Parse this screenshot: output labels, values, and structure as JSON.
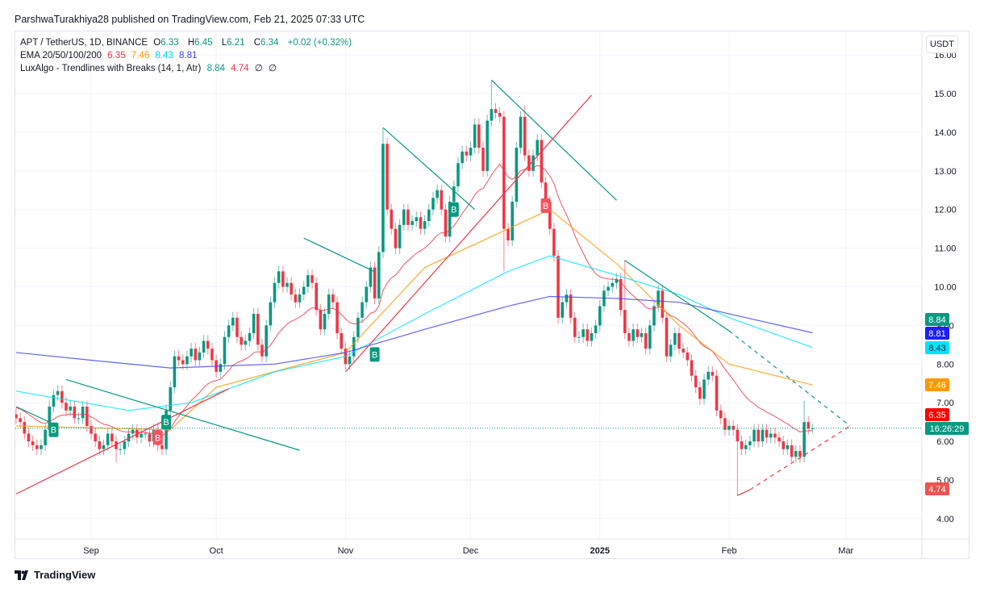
{
  "published": "ParshwaTurakhiya28 published on TradingView.com, Feb 21, 2025 07:33 UTC",
  "legend": {
    "symbol": "APT / TetherUS, 1D, BINANCE",
    "o_label": "O",
    "o": "6.33",
    "h_label": "H",
    "h": "6.45",
    "l_label": "L",
    "l": "6.21",
    "c_label": "C",
    "c": "6.34",
    "change": "+0.02 (+0.32%)",
    "ema_label": "EMA 20/50/100/200",
    "ema_values": [
      "6.35",
      "7.46",
      "8.43",
      "8.81"
    ],
    "lux_label": "LuxAlgo - Trendlines with Breaks (14, 1, Atr)",
    "lux_values": [
      "8.84",
      "4.74",
      "∅",
      "∅"
    ]
  },
  "currency_button": "USDT",
  "logo_text": "TradingView",
  "colors": {
    "up": "#089981",
    "down": "#f23645",
    "ema20": "#f23645",
    "ema50": "#ff9800",
    "ema100": "#00e5ff",
    "ema200": "#3d3dff",
    "trend_down": "#089981",
    "trend_up": "#f23645"
  },
  "chart_data": {
    "type": "candlestick",
    "first_date": "2024-08-14",
    "closes": [
      6.6,
      6.5,
      6.2,
      6.0,
      5.9,
      5.8,
      5.9,
      6.3,
      6.9,
      7.2,
      7.3,
      7.0,
      6.8,
      6.9,
      6.6,
      6.6,
      6.9,
      6.4,
      6.2,
      6.0,
      5.8,
      5.9,
      6.2,
      6.0,
      5.8,
      5.8,
      6.0,
      6.2,
      6.3,
      6.1,
      6.2,
      6.2,
      6.0,
      6.3,
      5.9,
      5.8,
      6.8,
      7.4,
      8.2,
      8.1,
      8.0,
      8.2,
      8.4,
      8.1,
      8.3,
      8.6,
      8.4,
      8.1,
      7.8,
      8.0,
      8.7,
      9.0,
      9.2,
      8.7,
      8.5,
      8.6,
      8.8,
      9.3,
      8.5,
      8.2,
      9.0,
      9.6,
      10.1,
      10.4,
      10.0,
      10.1,
      9.8,
      9.6,
      9.8,
      10.0,
      10.3,
      10.1,
      9.4,
      8.9,
      9.3,
      9.8,
      9.6,
      8.8,
      8.4,
      8.0,
      8.2,
      8.7,
      9.2,
      9.6,
      10.0,
      10.5,
      9.7,
      10.9,
      13.7,
      12.0,
      11.5,
      11.0,
      11.6,
      12.0,
      11.6,
      11.7,
      11.8,
      11.5,
      11.7,
      12.0,
      12.3,
      12.5,
      12.0,
      11.3,
      12.2,
      12.6,
      13.2,
      13.5,
      13.4,
      13.6,
      14.2,
      13.6,
      13.0,
      14.3,
      14.6,
      14.5,
      14.4,
      11.5,
      11.2,
      12.2,
      13.6,
      14.4,
      13.4,
      13.0,
      13.4,
      13.8,
      12.7,
      12.2,
      11.5,
      10.8,
      9.2,
      9.6,
      9.8,
      9.2,
      8.7,
      8.7,
      8.9,
      8.6,
      8.8,
      9.0,
      9.5,
      9.9,
      10.0,
      10.1,
      10.2,
      9.4,
      8.8,
      8.6,
      8.9,
      8.7,
      8.8,
      8.4,
      9.0,
      9.5,
      9.9,
      9.2,
      8.2,
      8.5,
      8.8,
      8.4,
      8.3,
      8.1,
      7.7,
      7.4,
      7.1,
      7.6,
      7.8,
      7.7,
      6.8,
      6.6,
      6.3,
      6.4,
      6.3,
      6.0,
      5.8,
      5.9,
      6.0,
      6.3,
      6.0,
      6.3,
      6.1,
      6.2,
      6.1,
      6.0,
      5.8,
      5.9,
      5.6,
      5.75,
      5.6,
      6.5,
      6.33,
      6.34
    ],
    "notable_wicks": [
      {
        "date": "2024-09-07",
        "low": 5.45
      },
      {
        "date": "2024-11-10",
        "high": 14.1
      },
      {
        "date": "2024-12-06",
        "high": 15.35
      },
      {
        "date": "2024-12-09",
        "low": 10.4
      },
      {
        "date": "2024-12-14",
        "high": 14.7
      },
      {
        "date": "2025-01-07",
        "high": 10.7
      },
      {
        "date": "2025-02-03",
        "low": 4.6
      },
      {
        "date": "2025-02-19",
        "high": 7.05
      },
      {
        "date": "2025-02-21",
        "high": 6.45,
        "low": 6.21
      }
    ],
    "ema": [
      {
        "name": "EMA 50",
        "color_key": "ema50",
        "points": [
          [
            "2024-08-14",
            6.4
          ],
          [
            "2024-09-20",
            6.3
          ],
          [
            "2024-10-01",
            7.4
          ],
          [
            "2024-11-01",
            8.3
          ],
          [
            "2024-11-20",
            10.5
          ],
          [
            "2024-12-08",
            11.4
          ],
          [
            "2024-12-20",
            12.0
          ],
          [
            "2025-01-05",
            10.6
          ],
          [
            "2025-01-20",
            9.0
          ],
          [
            "2025-02-01",
            8.0
          ],
          [
            "2025-02-21",
            7.46
          ]
        ]
      },
      {
        "name": "EMA 100",
        "color_key": "ema100",
        "points": [
          [
            "2024-08-14",
            7.3
          ],
          [
            "2024-09-10",
            6.8
          ],
          [
            "2024-09-25",
            7.0
          ],
          [
            "2024-10-15",
            7.8
          ],
          [
            "2024-11-01",
            8.2
          ],
          [
            "2024-11-20",
            9.3
          ],
          [
            "2024-12-10",
            10.4
          ],
          [
            "2024-12-20",
            10.8
          ],
          [
            "2025-01-05",
            10.3
          ],
          [
            "2025-01-20",
            9.8
          ],
          [
            "2025-02-01",
            9.2
          ],
          [
            "2025-02-21",
            8.43
          ]
        ]
      },
      {
        "name": "EMA 200",
        "color_key": "ema200",
        "points": [
          [
            "2024-08-14",
            8.3
          ],
          [
            "2024-09-01",
            8.1
          ],
          [
            "2024-09-20",
            7.9
          ],
          [
            "2024-10-15",
            8.0
          ],
          [
            "2024-11-01",
            8.3
          ],
          [
            "2024-11-20",
            8.9
          ],
          [
            "2024-12-10",
            9.5
          ],
          [
            "2024-12-20",
            9.75
          ],
          [
            "2025-01-05",
            9.7
          ],
          [
            "2025-01-20",
            9.6
          ],
          [
            "2025-02-01",
            9.3
          ],
          [
            "2025-02-21",
            8.81
          ]
        ]
      }
    ],
    "trendlines": [
      {
        "kind": "down",
        "from": [
          "2024-08-14",
          6.9
        ],
        "to": [
          "2024-08-24",
          6.4
        ]
      },
      {
        "kind": "down",
        "from": [
          "2024-08-26",
          7.6
        ],
        "to": [
          "2024-10-21",
          5.77
        ]
      },
      {
        "kind": "down",
        "from": [
          "2024-10-22",
          11.26
        ],
        "to": [
          "2024-11-08",
          10.39
        ]
      },
      {
        "kind": "down",
        "from": [
          "2024-11-10",
          14.12
        ],
        "to": [
          "2024-12-02",
          12.0
        ]
      },
      {
        "kind": "down",
        "from": [
          "2024-12-06",
          15.35
        ],
        "to": [
          "2025-01-05",
          12.24
        ]
      },
      {
        "kind": "down",
        "from": [
          "2025-01-07",
          10.68
        ],
        "to": [
          "2025-02-01",
          8.86
        ],
        "extend_to": [
          "2025-03-02",
          6.4
        ]
      },
      {
        "kind": "up",
        "from": [
          "2024-08-14",
          4.64
        ],
        "to": [
          "2024-10-04",
          7.36
        ]
      },
      {
        "kind": "up",
        "from": [
          "2024-11-01",
          7.8
        ],
        "to": [
          "2024-12-30",
          14.96
        ]
      },
      {
        "kind": "up",
        "from": [
          "2025-02-03",
          4.6
        ],
        "to": [
          "2025-02-06",
          4.75
        ],
        "extend_to": [
          "2025-03-02",
          6.4
        ]
      }
    ],
    "signals": [
      {
        "date": "2024-08-23",
        "price": 6.3,
        "label": "B",
        "kind": "up"
      },
      {
        "date": "2024-09-17",
        "price": 6.1,
        "label": "B",
        "kind": "down"
      },
      {
        "date": "2024-09-19",
        "price": 6.5,
        "label": "B",
        "kind": "up"
      },
      {
        "date": "2024-11-08",
        "price": 8.25,
        "label": "B",
        "kind": "up"
      },
      {
        "date": "2024-11-27",
        "price": 12.0,
        "label": "B",
        "kind": "up"
      },
      {
        "date": "2024-12-19",
        "price": 12.1,
        "label": "B",
        "kind": "down"
      }
    ],
    "last_price": 6.34,
    "y_ticks": [
      "16.00",
      "15.00",
      "14.00",
      "13.00",
      "12.00",
      "11.00",
      "10.00",
      "9.00",
      "8.00",
      "7.00",
      "6.00",
      "5.00",
      "4.00"
    ],
    "x_ticks": [
      {
        "label": "Sep",
        "date": "2024-09-01"
      },
      {
        "label": "Oct",
        "date": "2024-10-01"
      },
      {
        "label": "Nov",
        "date": "2024-11-01"
      },
      {
        "label": "Dec",
        "date": "2024-12-01"
      },
      {
        "label": "2025",
        "date": "2025-01-01",
        "bold": true
      },
      {
        "label": "Feb",
        "date": "2025-02-01"
      },
      {
        "label": "Mar",
        "date": "2025-03-01"
      }
    ],
    "price_labels": [
      {
        "text": "8.84",
        "price": 8.84,
        "color": "#089981"
      },
      {
        "text": "8.81",
        "price": 8.81,
        "color": "#1e1eff"
      },
      {
        "text": "8.43",
        "price": 8.43,
        "color": "#00e5ff",
        "dark_text": true
      },
      {
        "text": "7.46",
        "price": 7.46,
        "color": "#ff9800"
      },
      {
        "text": "6.35",
        "price": 6.35,
        "color": "#ff0000"
      },
      {
        "text": "16:26:29",
        "price": 6.0,
        "color": "#089981"
      },
      {
        "text": "4.74",
        "price": 4.74,
        "color": "#f05350"
      }
    ]
  }
}
